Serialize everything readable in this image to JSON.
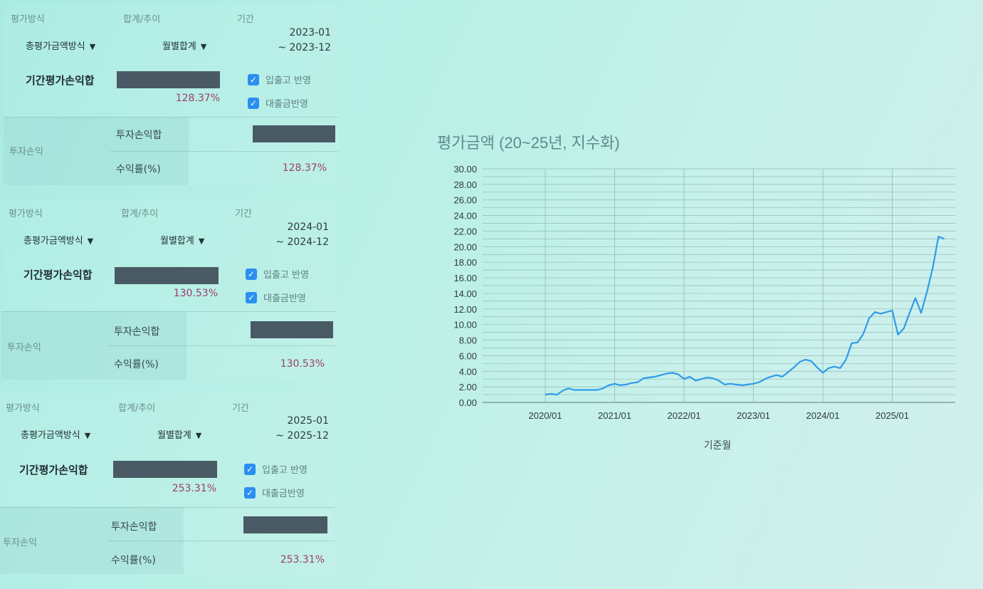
{
  "labels": {
    "method": "평가방식",
    "sum_trend": "합계/추이",
    "period": "기간",
    "method_value": "총평가금액방식",
    "sum_value": "월별합계",
    "period_pnl": "기간평가손익합",
    "inout": "입출고 반영",
    "loan": "대출금반영",
    "investment_pnl": "투자손익",
    "investment_pnl_sum": "투자손익합",
    "return_rate": "수익률(%)"
  },
  "panels": [
    {
      "period_start": "2023-01",
      "period_end": "~ 2023-12",
      "pnl_pct": "128.37%",
      "return_pct": "128.37%"
    },
    {
      "period_start": "2024-01",
      "period_end": "~ 2024-12",
      "pnl_pct": "130.53%",
      "return_pct": "130.53%"
    },
    {
      "period_start": "2025-01",
      "period_end": "~ 2025-12",
      "pnl_pct": "253.31%",
      "return_pct": "253.31%"
    }
  ],
  "chart_data": {
    "type": "line",
    "title": "평가금액 (20~25년, 지수화)",
    "xlabel": "기준월",
    "ylabel": "",
    "ylim": [
      0,
      30
    ],
    "y_ticks": [
      "0.00",
      "2.00",
      "4.00",
      "6.00",
      "8.00",
      "10.00",
      "12.00",
      "14.00",
      "16.00",
      "18.00",
      "20.00",
      "22.00",
      "24.00",
      "26.00",
      "28.00",
      "30.00"
    ],
    "x_ticks": [
      "2020/01",
      "2021/01",
      "2022/01",
      "2023/01",
      "2024/01",
      "2025/01"
    ],
    "grid": true,
    "line_color": "#2f9bea",
    "series": [
      {
        "x": [
          "2020/01",
          "2020/02",
          "2020/03",
          "2020/04",
          "2020/05",
          "2020/06",
          "2020/07",
          "2020/08",
          "2020/09",
          "2020/10",
          "2020/11",
          "2020/12",
          "2021/01",
          "2021/02",
          "2021/03",
          "2021/04",
          "2021/05",
          "2021/06",
          "2021/07",
          "2021/08",
          "2021/09",
          "2021/10",
          "2021/11",
          "2021/12",
          "2022/01",
          "2022/02",
          "2022/03",
          "2022/04",
          "2022/05",
          "2022/06",
          "2022/07",
          "2022/08",
          "2022/09",
          "2022/10",
          "2022/11",
          "2022/12",
          "2023/01",
          "2023/02",
          "2023/03",
          "2023/04",
          "2023/05",
          "2023/06",
          "2023/07",
          "2023/08",
          "2023/09",
          "2023/10",
          "2023/11",
          "2023/12",
          "2024/01",
          "2024/02",
          "2024/03",
          "2024/04",
          "2024/05",
          "2024/06",
          "2024/07",
          "2024/08",
          "2024/09",
          "2024/10",
          "2024/11",
          "2024/12",
          "2025/01",
          "2025/02",
          "2025/03",
          "2025/04",
          "2025/05",
          "2025/06",
          "2025/07",
          "2025/08",
          "2025/09",
          "2025/10"
        ],
        "values": [
          1.0,
          1.1,
          1.0,
          1.5,
          1.8,
          1.6,
          1.6,
          1.6,
          1.6,
          1.6,
          1.8,
          2.2,
          2.4,
          2.2,
          2.3,
          2.5,
          2.6,
          3.1,
          3.2,
          3.3,
          3.5,
          3.7,
          3.8,
          3.6,
          3.0,
          3.3,
          2.8,
          3.0,
          3.2,
          3.1,
          2.8,
          2.3,
          2.4,
          2.3,
          2.2,
          2.3,
          2.4,
          2.6,
          3.0,
          3.3,
          3.5,
          3.3,
          3.9,
          4.5,
          5.2,
          5.5,
          5.3,
          4.5,
          3.8,
          4.4,
          4.6,
          4.4,
          5.5,
          7.6,
          7.7,
          8.8,
          10.8,
          11.6,
          11.4,
          11.6,
          11.8,
          8.7,
          9.5,
          11.5,
          13.4,
          11.5,
          14.2,
          17.3,
          21.3,
          21.0
        ]
      }
    ]
  }
}
